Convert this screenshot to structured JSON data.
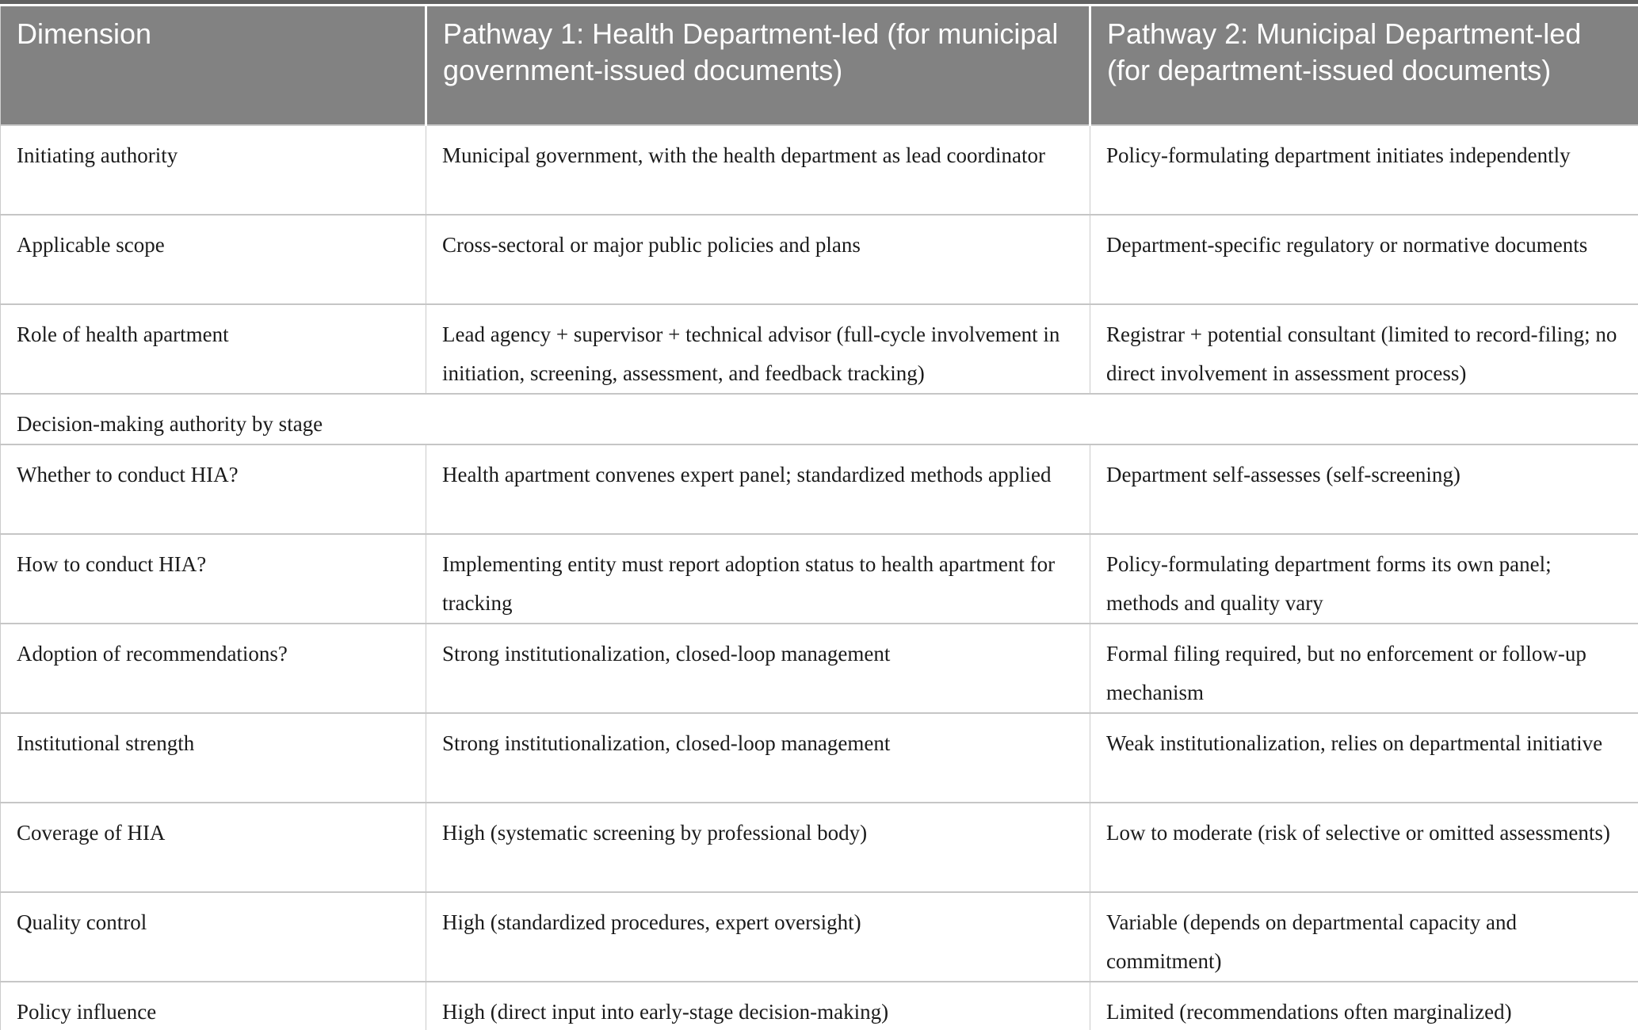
{
  "table": {
    "columns": [
      {
        "label": "Dimension"
      },
      {
        "label": "Pathway 1: Health Department-led (for municipal government-issued documents)"
      },
      {
        "label": "Pathway 2: Municipal Department-led (for department-issued documents)"
      }
    ],
    "rows": [
      {
        "dimension": "Initiating authority",
        "pathway1": "Municipal government, with the health department as lead coordinator",
        "pathway2": "Policy-formulating department initiates independently"
      },
      {
        "dimension": "Applicable scope",
        "pathway1": "Cross-sectoral or major public policies and plans",
        "pathway2": "Department-specific regulatory or normative documents"
      },
      {
        "dimension": "Role of health apartment",
        "pathway1": "Lead agency + supervisor + technical advisor (full-cycle involvement in initiation, screening, assessment, and feedback tracking)",
        "pathway2": "Registrar + potential consultant (limited to record-filing; no direct involvement in assessment process)"
      },
      {
        "label": "Decision-making authority by stage"
      },
      {
        "dimension": "Whether to conduct HIA?",
        "pathway1": "Health apartment convenes expert panel; standardized methods applied",
        "pathway2": "Department self-assesses (self-screening)"
      },
      {
        "dimension": "How to conduct HIA?",
        "pathway1": "Implementing entity must report adoption status to health apartment for tracking",
        "pathway2": "Policy-formulating department forms its own panel; methods and quality vary"
      },
      {
        "dimension": "Adoption of recommendations?",
        "pathway1": "Strong institutionalization, closed-loop management",
        "pathway2": "Formal filing required, but no enforcement or follow-up mechanism"
      },
      {
        "dimension": "Institutional strength",
        "pathway1": "Strong institutionalization, closed-loop management",
        "pathway2": "Weak institutionalization, relies on departmental initiative"
      },
      {
        "dimension": "Coverage of HIA",
        "pathway1": "High (systematic screening by professional body)",
        "pathway2": "Low to moderate (risk of selective or omitted assessments)"
      },
      {
        "dimension": "Quality control",
        "pathway1": "High (standardized procedures, expert oversight)",
        "pathway2": "Variable (depends on departmental capacity and commitment)"
      },
      {
        "dimension": "Policy influence",
        "pathway1": "High (direct input into early-stage decision-making)",
        "pathway2": "Limited (recommendations often marginalized)"
      }
    ],
    "colors": {
      "header_bg": "#828282",
      "header_text": "#ffffff",
      "top_rule": "#616161",
      "row_border": "#cccccc",
      "bottom_rule": "#b0b0b0",
      "body_text": "#1b1b1b"
    }
  }
}
